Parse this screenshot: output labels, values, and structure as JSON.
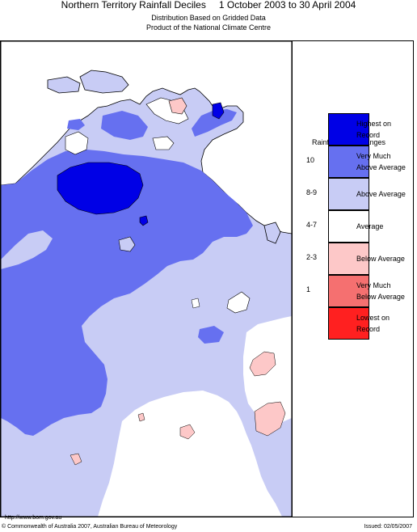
{
  "header": {
    "title": "Northern Territory Rainfall Deciles",
    "period": "1 October 2003 to 30 April 2004",
    "subtitle_line1": "Distribution Based on Gridded Data",
    "subtitle_line2": "Product of the National Climate Centre"
  },
  "legend": {
    "title": "Rainfall Decile Ranges",
    "items": [
      {
        "range": "",
        "label_line1": "Highest on",
        "label_line2": "Record",
        "color": "#0000e6"
      },
      {
        "range": "10",
        "label_line1": "Very Much",
        "label_line2": "Above Average",
        "color": "#6670f0"
      },
      {
        "range": "8-9",
        "label_line1": "Above Average",
        "label_line2": "",
        "color": "#c8ccf5"
      },
      {
        "range": "4-7",
        "label_line1": "Average",
        "label_line2": "",
        "color": "#ffffff"
      },
      {
        "range": "2-3",
        "label_line1": "Below Average",
        "label_line2": "",
        "color": "#fdc8c8"
      },
      {
        "range": "1",
        "label_line1": "Very Much",
        "label_line2": "Below Average",
        "color": "#f57070"
      },
      {
        "range": "",
        "label_line1": "Lowest on",
        "label_line2": "Record",
        "color": "#ff2020"
      }
    ]
  },
  "map_colors": {
    "above_average": "#c8ccf5",
    "very_much_above": "#6670f0",
    "highest": "#0000e6",
    "average": "#ffffff",
    "below_average": "#fdc8c8",
    "coastline": "#000000"
  },
  "footer": {
    "url": "http://www.bom.gov.au",
    "copyright": "© Commonwealth of Australia 2007, Australian Bureau of Meteorology",
    "issued": "Issued: 02/05/2007"
  }
}
